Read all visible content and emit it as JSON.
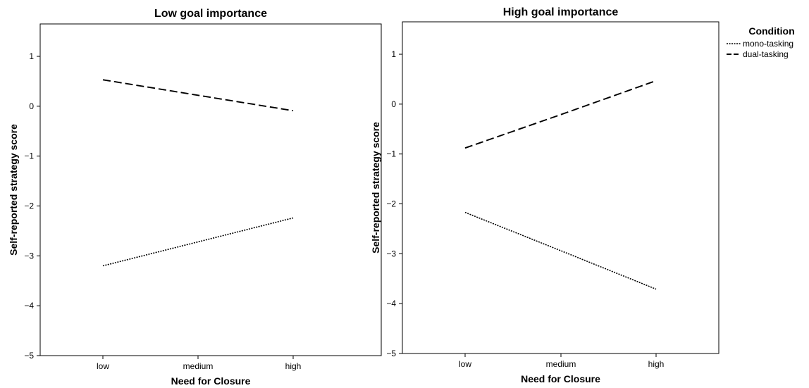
{
  "chart_data": [
    {
      "type": "line",
      "title": "Low goal importance",
      "xlabel": "Need for Closure",
      "ylabel": "Self-reported strategy score",
      "categories": [
        "low",
        "medium",
        "high"
      ],
      "ylim": [
        -5,
        1.65
      ],
      "yticks": [
        1,
        0,
        -1,
        -2,
        -3,
        -4,
        -5
      ],
      "ytick_labels": [
        "1",
        "0",
        "−1",
        "−2",
        "−3",
        "−4",
        "−5"
      ],
      "grid": false,
      "series": [
        {
          "name": "mono-tasking",
          "style": "dotted",
          "values": [
            -3.2,
            -2.72,
            -2.24
          ]
        },
        {
          "name": "dual-tasking",
          "style": "dashed",
          "values": [
            0.53,
            0.22,
            -0.09
          ]
        }
      ]
    },
    {
      "type": "line",
      "title": "High goal importance",
      "xlabel": "Need for Closure",
      "ylabel": "Self-reported strategy score",
      "categories": [
        "low",
        "medium",
        "high"
      ],
      "ylim": [
        -5,
        1.65
      ],
      "yticks": [
        1,
        0,
        -1,
        -2,
        -3,
        -4,
        -5
      ],
      "ytick_labels": [
        "1",
        "0",
        "−1",
        "−2",
        "−3",
        "−4",
        "−5"
      ],
      "grid": false,
      "series": [
        {
          "name": "mono-tasking",
          "style": "dotted",
          "values": [
            -2.17,
            -2.94,
            -3.71
          ]
        },
        {
          "name": "dual-tasking",
          "style": "dashed",
          "values": [
            -0.88,
            -0.21,
            0.47
          ]
        }
      ]
    }
  ],
  "legend": {
    "title": "Condition",
    "position": "right",
    "items": [
      {
        "label": "mono-tasking",
        "style": "dotted"
      },
      {
        "label": "dual-tasking",
        "style": "dashed"
      }
    ]
  }
}
